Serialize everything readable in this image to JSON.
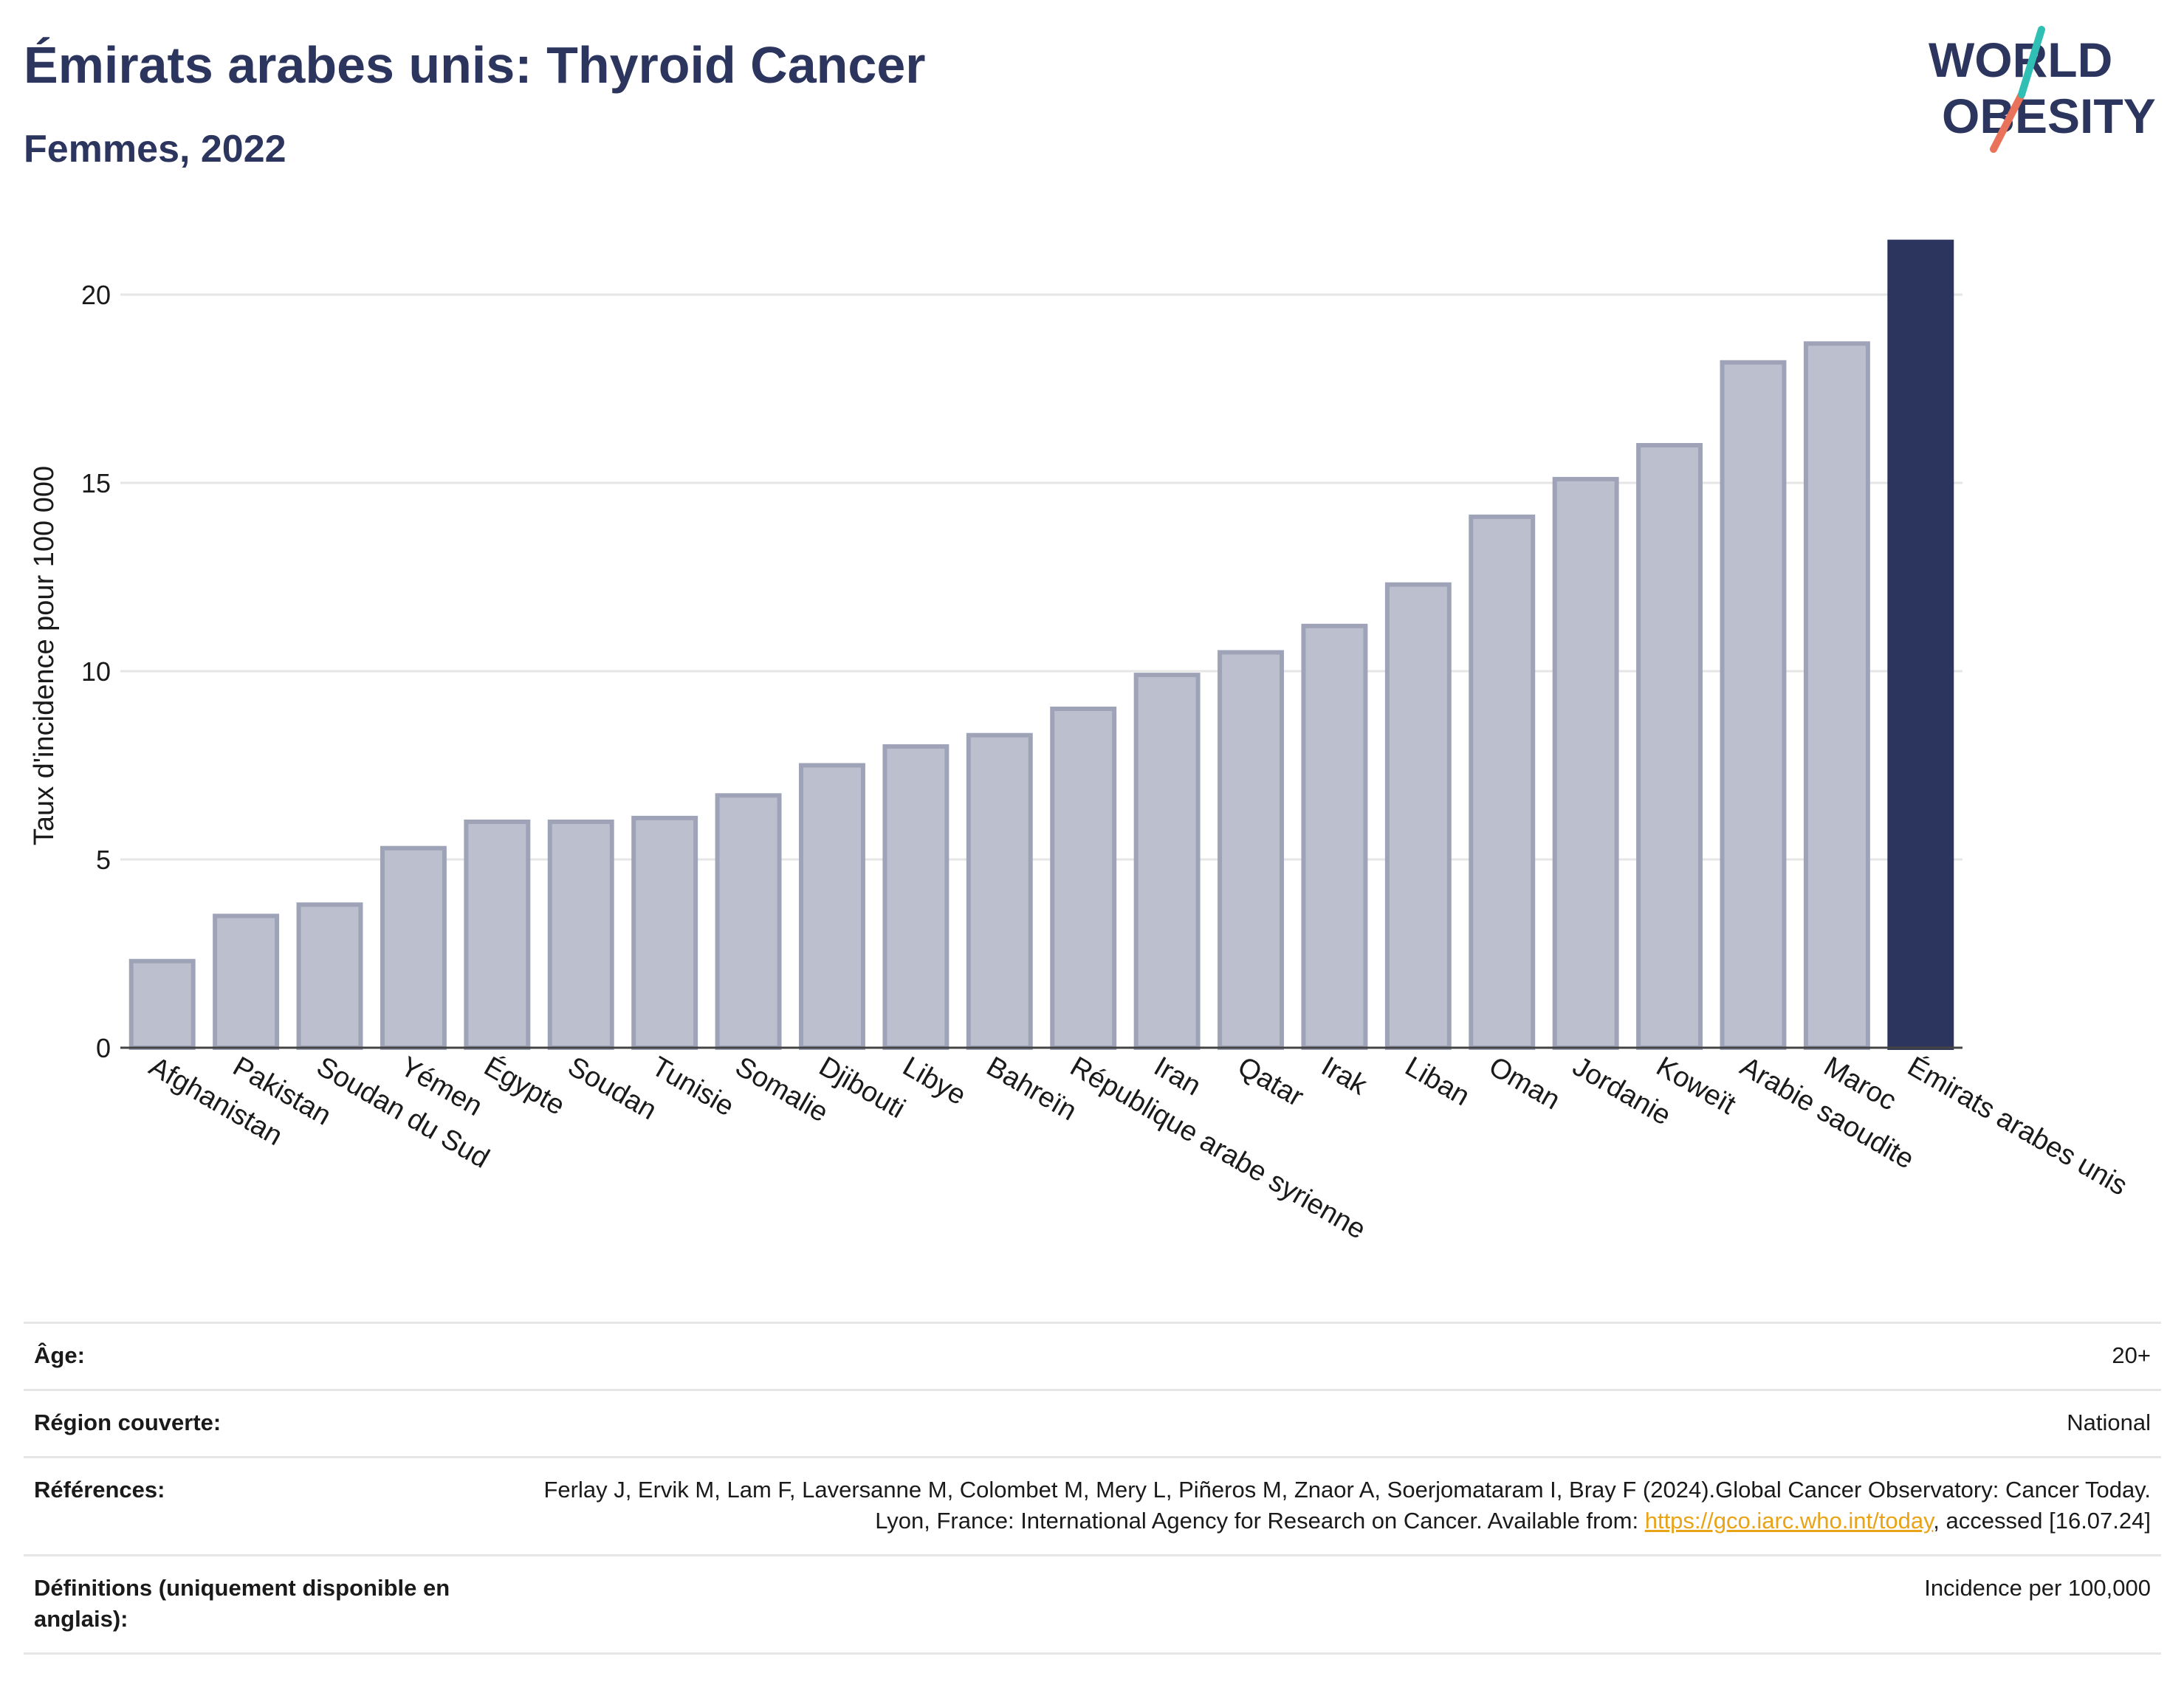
{
  "header": {
    "title": "Émirats arabes unis: Thyroid Cancer",
    "subtitle": "Femmes, 2022"
  },
  "logo": {
    "line1": "WORLD",
    "line2": "OBESITY"
  },
  "chart_data": {
    "type": "bar",
    "ylabel": "Taux d'incidence pour 100 000",
    "xlabel": "",
    "ylim": [
      0,
      22
    ],
    "yticks": [
      0,
      5,
      10,
      15,
      20
    ],
    "grid": true,
    "highlight": "Émirats arabes unis",
    "colors": {
      "bar": "#bcc0ce",
      "bar_border": "#9ea3b8",
      "highlight": "#2b355e",
      "grid": "#e6e6e6"
    },
    "categories": [
      "Afghanistan",
      "Pakistan",
      "Soudan du Sud",
      "Yémen",
      "Égypte",
      "Soudan",
      "Tunisie",
      "Somalie",
      "Djibouti",
      "Libye",
      "Bahreïn",
      "République arabe syrienne",
      "Iran",
      "Qatar",
      "Irak",
      "Liban",
      "Oman",
      "Jordanie",
      "Koweït",
      "Arabie saoudite",
      "Maroc",
      "Émirats arabes unis"
    ],
    "values": [
      2.3,
      3.5,
      3.8,
      5.3,
      6.0,
      6.0,
      6.1,
      6.7,
      7.5,
      8.0,
      8.3,
      9.0,
      9.9,
      10.5,
      11.2,
      12.3,
      14.1,
      15.1,
      16.0,
      18.2,
      18.7,
      21.4
    ]
  },
  "meta": [
    {
      "label": "Âge:",
      "value": "20+"
    },
    {
      "label": "Région couverte:",
      "value": "National"
    },
    {
      "label": "Références:",
      "value_before": "Ferlay J, Ervik M, Lam F, Laversanne M, Colombet M, Mery L, Piñeros M, Znaor A, Soerjomataram I, Bray F (2024).Global Cancer Observatory: Cancer Today. Lyon, France: International Agency for Research on Cancer. Available from: ",
      "link": "https://gco.iarc.who.int/today",
      "value_after": ", accessed [16.07.24]"
    },
    {
      "label": "Définitions (uniquement disponible en anglais):",
      "value": "Incidence per 100,000"
    }
  ]
}
